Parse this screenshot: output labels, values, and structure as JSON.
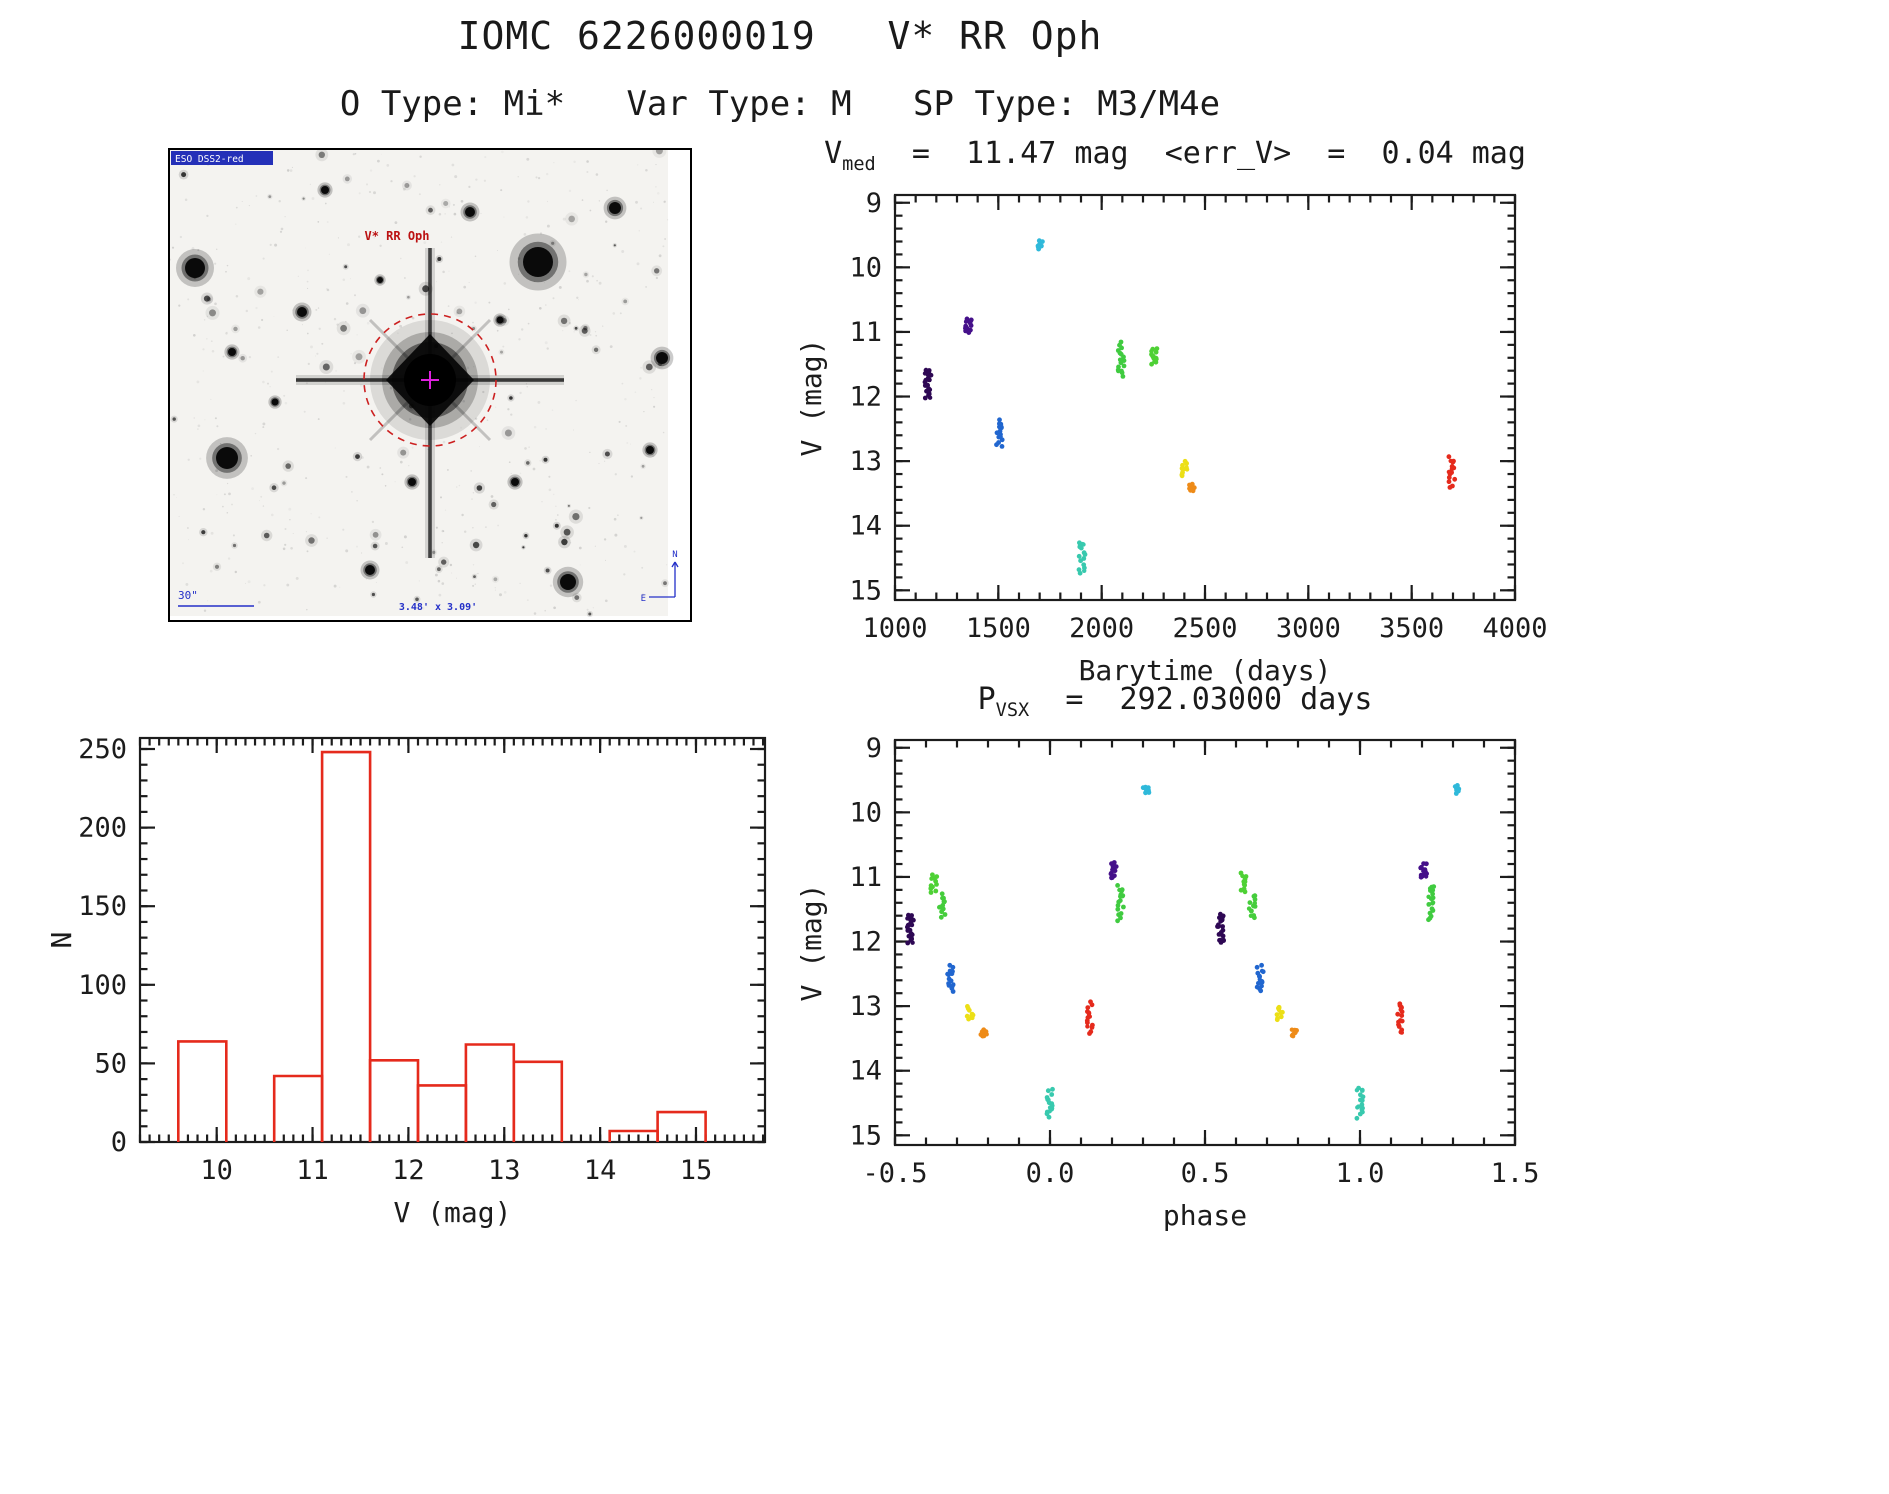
{
  "page": {
    "title": "IOMC 6226000019   V* RR Oph",
    "subtitle": "O Type: Mi*   Var Type: M   SP Type: M3/M4e"
  },
  "stats": {
    "v_med_mag": 11.47,
    "err_v_mag": 0.04,
    "p_vsx_days": 292.03
  },
  "star_image": {
    "survey_label": "ESO DSS2-red",
    "target_label": "V* RR Oph",
    "scale_label": "30\"",
    "fov_label": "3.48' x 3.09'",
    "compass_n": "N",
    "compass_e": "E",
    "annotation_color": "#2430c8",
    "aperture_color": "#cc2020"
  },
  "chart_data": [
    {
      "id": "lightcurve",
      "type": "scatter",
      "title": {
        "prefix": "V",
        "sub": "med",
        "rest": "  =  11.47 mag  <err_V>  =  0.04 mag"
      },
      "xlabel": "Barytime (days)",
      "ylabel": "V (mag)",
      "xlim": [
        1000,
        4000
      ],
      "ylim": [
        15.15,
        8.88
      ],
      "xticks": [
        1000,
        1500,
        2000,
        2500,
        3000,
        3500,
        4000
      ],
      "xtick_labels": [
        "1000",
        "1500",
        "2000",
        "2500",
        "3000",
        "3500",
        "4000"
      ],
      "yticks": [
        9,
        10,
        11,
        12,
        13,
        14,
        15
      ],
      "ytick_labels": [
        "9",
        "10",
        "11",
        "12",
        "13",
        "14",
        "15"
      ],
      "xminor": 100,
      "yminor": 0.2,
      "clusters": [
        {
          "x": 1160,
          "y1": 11.58,
          "y2": 12.02,
          "color": "#2e0854",
          "n": 16
        },
        {
          "x": 1355,
          "y1": 10.78,
          "y2": 11.02,
          "color": "#45108a",
          "n": 10
        },
        {
          "x": 1505,
          "y1": 12.38,
          "y2": 12.78,
          "color": "#2166cf",
          "n": 12
        },
        {
          "x": 1700,
          "y1": 9.6,
          "y2": 9.7,
          "color": "#2fb9da",
          "n": 6
        },
        {
          "x": 1905,
          "y1": 14.28,
          "y2": 14.72,
          "color": "#38c9ae",
          "n": 12
        },
        {
          "x": 2095,
          "y1": 11.15,
          "y2": 11.68,
          "color": "#40cb40",
          "n": 14
        },
        {
          "x": 2255,
          "y1": 11.25,
          "y2": 11.5,
          "color": "#4ed135",
          "n": 10
        },
        {
          "x": 2400,
          "y1": 13.02,
          "y2": 13.22,
          "color": "#ecdf16",
          "n": 8
        },
        {
          "x": 2435,
          "y1": 13.36,
          "y2": 13.47,
          "color": "#ee8b18",
          "n": 6
        },
        {
          "x": 3695,
          "y1": 12.95,
          "y2": 13.42,
          "color": "#e52a1c",
          "n": 12
        }
      ]
    },
    {
      "id": "histogram",
      "type": "bar",
      "xlabel": "V (mag)",
      "ylabel": "N",
      "xlim": [
        9.2,
        15.72
      ],
      "ylim": [
        0,
        257
      ],
      "xticks": [
        10,
        11,
        12,
        13,
        14,
        15
      ],
      "xtick_labels": [
        "10",
        "11",
        "12",
        "13",
        "14",
        "15"
      ],
      "yticks": [
        0,
        50,
        100,
        150,
        200,
        250
      ],
      "ytick_labels": [
        "0",
        "50",
        "100",
        "150",
        "200",
        "250"
      ],
      "xminor": 0.1,
      "yminor": 10,
      "color": "#e52a1c",
      "bins": [
        {
          "x0": 9.6,
          "x1": 10.1,
          "n": 64
        },
        {
          "x0": 10.6,
          "x1": 11.1,
          "n": 42
        },
        {
          "x0": 11.1,
          "x1": 11.6,
          "n": 248
        },
        {
          "x0": 11.6,
          "x1": 12.1,
          "n": 52
        },
        {
          "x0": 12.1,
          "x1": 12.6,
          "n": 36
        },
        {
          "x0": 12.6,
          "x1": 13.1,
          "n": 62
        },
        {
          "x0": 13.1,
          "x1": 13.6,
          "n": 51
        },
        {
          "x0": 14.1,
          "x1": 14.6,
          "n": 7
        },
        {
          "x0": 14.6,
          "x1": 15.1,
          "n": 19
        }
      ]
    },
    {
      "id": "phase",
      "type": "scatter",
      "title": {
        "prefix": "P",
        "sub": "VSX",
        "rest": "  =  292.03000 days"
      },
      "xlabel": "phase",
      "ylabel": "V (mag)",
      "xlim": [
        -0.5,
        1.5
      ],
      "ylim": [
        15.15,
        8.88
      ],
      "xticks": [
        -0.5,
        0.0,
        0.5,
        1.0,
        1.5
      ],
      "xtick_labels": [
        "-0.5",
        "0.0",
        "0.5",
        "1.0",
        "1.5"
      ],
      "yticks": [
        9,
        10,
        11,
        12,
        13,
        14,
        15
      ],
      "ytick_labels": [
        "9",
        "10",
        "11",
        "12",
        "13",
        "14",
        "15"
      ],
      "xminor": 0.1,
      "yminor": 0.2,
      "clusters": [
        {
          "x": -0.45,
          "y1": 11.58,
          "y2": 12.02,
          "color": "#2e0854",
          "n": 16
        },
        {
          "x": -0.375,
          "y1": 10.95,
          "y2": 11.25,
          "color": "#4ed135",
          "n": 9
        },
        {
          "x": -0.348,
          "y1": 11.28,
          "y2": 11.62,
          "color": "#45cd3c",
          "n": 10
        },
        {
          "x": -0.322,
          "y1": 12.38,
          "y2": 12.78,
          "color": "#2166cf",
          "n": 12
        },
        {
          "x": -0.258,
          "y1": 13.02,
          "y2": 13.22,
          "color": "#ecdf16",
          "n": 8
        },
        {
          "x": -0.213,
          "y1": 13.36,
          "y2": 13.47,
          "color": "#ee8b18",
          "n": 6
        },
        {
          "x": 0.0,
          "y1": 14.28,
          "y2": 14.72,
          "color": "#38c9ae",
          "n": 12
        },
        {
          "x": 0.128,
          "y1": 12.95,
          "y2": 13.42,
          "color": "#e52a1c",
          "n": 12
        },
        {
          "x": 0.205,
          "y1": 10.78,
          "y2": 11.02,
          "color": "#45108a",
          "n": 10
        },
        {
          "x": 0.228,
          "y1": 11.15,
          "y2": 11.68,
          "color": "#40cb40",
          "n": 14
        },
        {
          "x": 0.31,
          "y1": 9.6,
          "y2": 9.7,
          "color": "#2fb9da",
          "n": 6
        },
        {
          "x": 0.55,
          "y1": 11.58,
          "y2": 12.02,
          "color": "#2e0854",
          "n": 16
        },
        {
          "x": 0.625,
          "y1": 10.95,
          "y2": 11.25,
          "color": "#4ed135",
          "n": 9
        },
        {
          "x": 0.652,
          "y1": 11.28,
          "y2": 11.62,
          "color": "#45cd3c",
          "n": 10
        },
        {
          "x": 0.678,
          "y1": 12.38,
          "y2": 12.78,
          "color": "#2166cf",
          "n": 12
        },
        {
          "x": 0.742,
          "y1": 13.02,
          "y2": 13.22,
          "color": "#ecdf16",
          "n": 8
        },
        {
          "x": 0.787,
          "y1": 13.36,
          "y2": 13.47,
          "color": "#ee8b18",
          "n": 6
        },
        {
          "x": 1.0,
          "y1": 14.28,
          "y2": 14.72,
          "color": "#38c9ae",
          "n": 12
        },
        {
          "x": 1.128,
          "y1": 12.95,
          "y2": 13.42,
          "color": "#e52a1c",
          "n": 12
        },
        {
          "x": 1.205,
          "y1": 10.78,
          "y2": 11.02,
          "color": "#45108a",
          "n": 10
        },
        {
          "x": 1.228,
          "y1": 11.15,
          "y2": 11.68,
          "color": "#40cb40",
          "n": 14
        },
        {
          "x": 1.31,
          "y1": 9.6,
          "y2": 9.7,
          "color": "#2fb9da",
          "n": 6
        }
      ]
    }
  ]
}
